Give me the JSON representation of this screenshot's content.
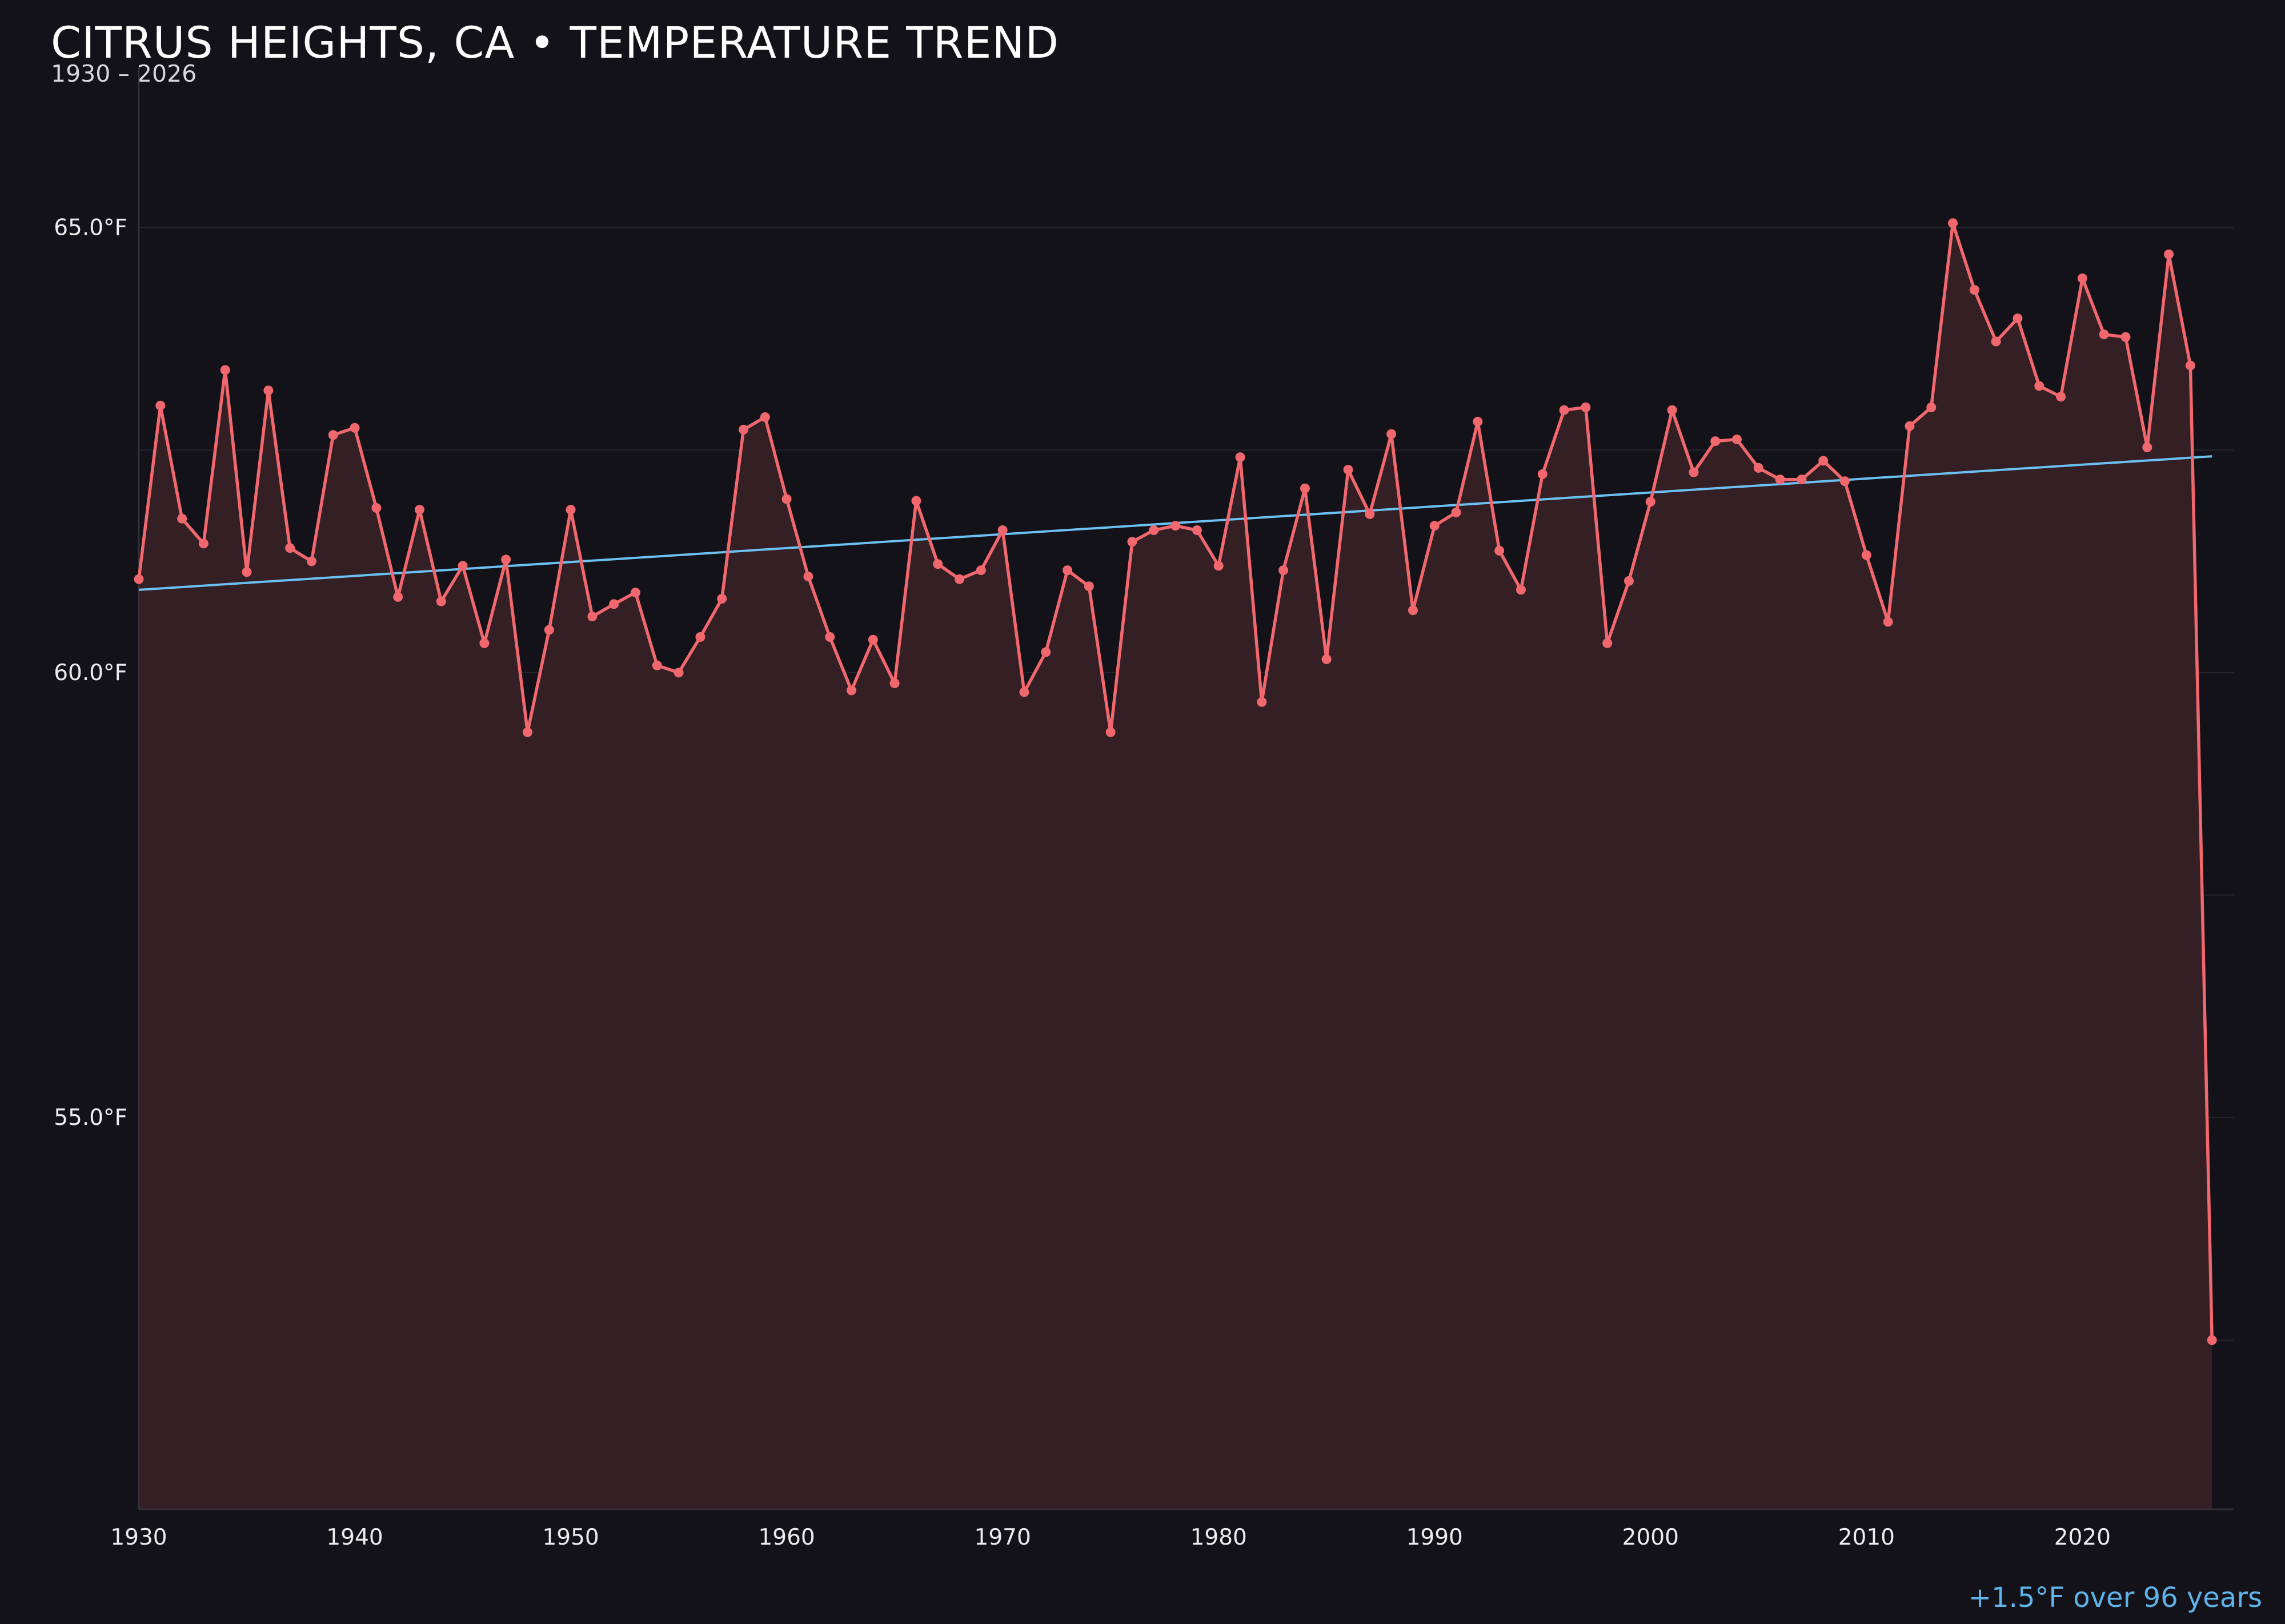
{
  "header": {
    "title": "CITRUS HEIGHTS, CA • TEMPERATURE TREND",
    "subtitle": "1930 – 2026"
  },
  "footer": {
    "trend_note": "+1.5°F over 96 years"
  },
  "colors": {
    "background": "#121218",
    "series_line": "#f0686e",
    "area_fill": "#341f25",
    "trend_line": "#6cc0f2",
    "grid": "#26242c",
    "axis": "#35343c",
    "text": "#ececec"
  },
  "chart_data": {
    "type": "line",
    "title": "CITRUS HEIGHTS, CA • TEMPERATURE TREND",
    "subtitle": "1930 – 2026",
    "xlabel": "",
    "ylabel": "",
    "xlim": [
      1930,
      2027
    ],
    "ylim": [
      50.6,
      66.8
    ],
    "x_ticks": [
      1930,
      1940,
      1950,
      1960,
      1970,
      1980,
      1990,
      2000,
      2010,
      2020
    ],
    "x_tick_labels": [
      "1930",
      "1940",
      "1950",
      "1960",
      "1970",
      "1980",
      "1990",
      "2000",
      "2010",
      "2020"
    ],
    "y_ticks": [
      55,
      60,
      65
    ],
    "y_tick_labels": [
      "55.0°F",
      "60.0°F",
      "65.0°F"
    ],
    "grid": true,
    "area_fill": true,
    "markers": true,
    "legend": "none",
    "series": [
      {
        "x": [
          1930,
          1931,
          1932,
          1933,
          1934,
          1935,
          1936,
          1937,
          1938,
          1939,
          1940,
          1941,
          1942,
          1943,
          1944,
          1945,
          1946,
          1947,
          1948,
          1949,
          1950,
          1951,
          1952,
          1953,
          1954,
          1955,
          1956,
          1957,
          1958,
          1959,
          1960,
          1961,
          1962,
          1963,
          1964,
          1965,
          1966,
          1967,
          1968,
          1969,
          1970,
          1971,
          1972,
          1973,
          1974,
          1975,
          1976,
          1977,
          1978,
          1979,
          1980,
          1981,
          1982,
          1983,
          1984,
          1985,
          1986,
          1987,
          1988,
          1989,
          1990,
          1991,
          1992,
          1993,
          1994,
          1995,
          1996,
          1997,
          1998,
          1999,
          2000,
          2001,
          2002,
          2003,
          2004,
          2005,
          2006,
          2007,
          2008,
          2009,
          2010,
          2011,
          2012,
          2013,
          2014,
          2015,
          2016,
          2017,
          2018,
          2019,
          2020,
          2021,
          2022,
          2023,
          2024,
          2025,
          2026
        ],
        "values": [
          61.05,
          63.0,
          61.73,
          61.45,
          63.4,
          61.13,
          63.17,
          61.4,
          61.25,
          62.67,
          62.75,
          61.85,
          60.85,
          61.83,
          60.8,
          61.2,
          60.33,
          61.27,
          59.33,
          60.48,
          61.83,
          60.63,
          60.77,
          60.9,
          60.08,
          60.0,
          60.4,
          60.83,
          62.73,
          62.87,
          61.95,
          61.08,
          60.4,
          59.8,
          60.37,
          59.88,
          61.93,
          61.22,
          61.05,
          61.15,
          61.6,
          59.78,
          60.23,
          61.15,
          60.97,
          59.33,
          61.47,
          61.6,
          61.65,
          61.6,
          61.2,
          62.42,
          59.67,
          61.15,
          62.07,
          60.15,
          62.28,
          61.78,
          62.68,
          60.7,
          61.65,
          61.8,
          62.82,
          61.37,
          60.93,
          62.23,
          62.95,
          62.98,
          60.33,
          61.03,
          61.92,
          62.95,
          62.25,
          62.6,
          62.62,
          62.3,
          62.17,
          62.17,
          62.38,
          62.15,
          61.32,
          60.57,
          62.77,
          62.98,
          65.05,
          64.3,
          63.72,
          63.98,
          63.22,
          63.1,
          64.43,
          63.8,
          63.77,
          62.53,
          64.7,
          63.45,
          52.5
        ]
      }
    ],
    "trend_line": {
      "x": [
        1930,
        2026
      ],
      "values": [
        60.93,
        62.43
      ]
    }
  }
}
